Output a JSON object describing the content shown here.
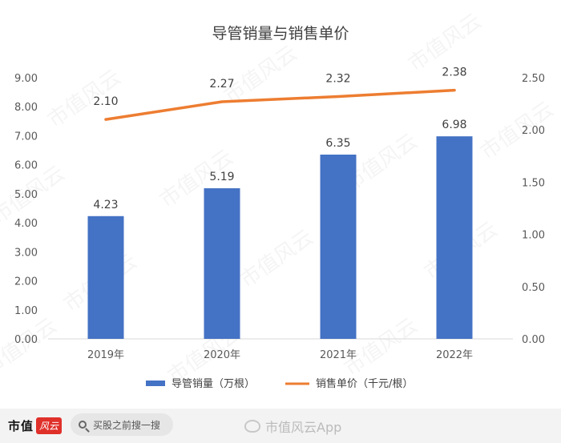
{
  "chart_data": {
    "type": "bar+line",
    "title": "导管销量与销售单价",
    "categories": [
      "2019年",
      "2020年",
      "2021年",
      "2022年"
    ],
    "series": [
      {
        "name": "导管销量（万根）",
        "type": "bar",
        "axis": "left",
        "values": [
          4.23,
          5.19,
          6.35,
          6.98
        ],
        "labels": [
          "4.23",
          "5.19",
          "6.35",
          "6.98"
        ],
        "color": "#4472c4"
      },
      {
        "name": "销售单价（千元/根）",
        "type": "line",
        "axis": "right",
        "values": [
          2.1,
          2.27,
          2.32,
          2.38
        ],
        "labels": [
          "2.10",
          "2.27",
          "2.32",
          "2.38"
        ],
        "color": "#ed7d31"
      }
    ],
    "y_left": {
      "min": 0,
      "max": 9,
      "ticks": [
        "0.00",
        "1.00",
        "2.00",
        "3.00",
        "4.00",
        "5.00",
        "6.00",
        "7.00",
        "8.00",
        "9.00"
      ]
    },
    "y_right": {
      "min": 0,
      "max": 2.5,
      "ticks": [
        "0.00",
        "0.50",
        "1.00",
        "1.50",
        "2.00",
        "2.50"
      ]
    },
    "grid": false,
    "legend": "bottom"
  },
  "watermark": "市值风云",
  "bottom_bar": {
    "logo_text": "市值",
    "logo_badge": "风云",
    "search_placeholder": "买股之前搜一搜",
    "weibo_text": "市值风云App"
  }
}
